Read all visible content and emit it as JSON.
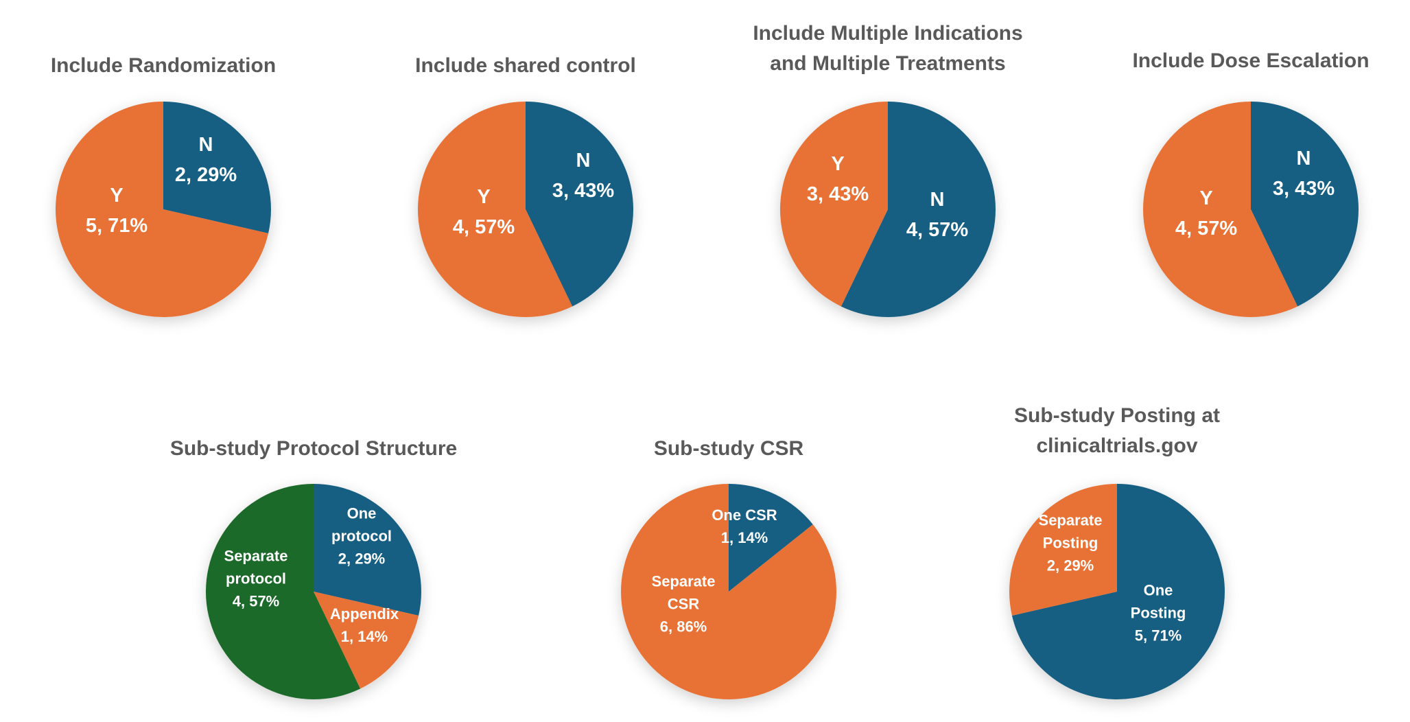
{
  "colors": {
    "blue": "#175E82",
    "orange": "#E87234",
    "green": "#1D6B2A",
    "title": "#595959"
  },
  "chart_data": [
    {
      "type": "pie",
      "title": [
        "Include Randomization"
      ],
      "slices": [
        {
          "name": "N",
          "count": 2,
          "pct": "29%",
          "label": [
            "N",
            "2, 29%"
          ],
          "color": "blue"
        },
        {
          "name": "Y",
          "count": 5,
          "pct": "71%",
          "label": [
            "Y",
            "5, 71%"
          ],
          "color": "orange"
        }
      ]
    },
    {
      "type": "pie",
      "title": [
        "Include shared control"
      ],
      "slices": [
        {
          "name": "N",
          "count": 3,
          "pct": "43%",
          "label": [
            "N",
            "3, 43%"
          ],
          "color": "blue"
        },
        {
          "name": "Y",
          "count": 4,
          "pct": "57%",
          "label": [
            "Y",
            "4, 57%"
          ],
          "color": "orange"
        }
      ]
    },
    {
      "type": "pie",
      "title": [
        "Include Multiple Indications",
        "and Multiple Treatments"
      ],
      "slices": [
        {
          "name": "N",
          "count": 4,
          "pct": "57%",
          "label": [
            "N",
            "4, 57%"
          ],
          "color": "blue"
        },
        {
          "name": "Y",
          "count": 3,
          "pct": "43%",
          "label": [
            "Y",
            "3, 43%"
          ],
          "color": "orange"
        }
      ]
    },
    {
      "type": "pie",
      "title": [
        "Include Dose Escalation"
      ],
      "slices": [
        {
          "name": "N",
          "count": 3,
          "pct": "43%",
          "label": [
            "N",
            "3, 43%"
          ],
          "color": "blue"
        },
        {
          "name": "Y",
          "count": 4,
          "pct": "57%",
          "label": [
            "Y",
            "4, 57%"
          ],
          "color": "orange"
        }
      ]
    },
    {
      "type": "pie",
      "title": [
        "Sub-study Protocol Structure"
      ],
      "slices": [
        {
          "name": "One protocol",
          "count": 2,
          "pct": "29%",
          "label": [
            "One",
            "protocol",
            "2, 29%"
          ],
          "color": "blue"
        },
        {
          "name": "Appendix",
          "count": 1,
          "pct": "14%",
          "label": [
            "Appendix",
            "1, 14%"
          ],
          "color": "orange"
        },
        {
          "name": "Separate protocol",
          "count": 4,
          "pct": "57%",
          "label": [
            "Separate",
            "protocol",
            "4, 57%"
          ],
          "color": "green"
        }
      ]
    },
    {
      "type": "pie",
      "title": [
        "Sub-study CSR"
      ],
      "slices": [
        {
          "name": "One CSR",
          "count": 1,
          "pct": "14%",
          "label": [
            "One CSR",
            "1, 14%"
          ],
          "color": "blue"
        },
        {
          "name": "Separate CSR",
          "count": 6,
          "pct": "86%",
          "label": [
            "Separate",
            "CSR",
            "6, 86%"
          ],
          "color": "orange"
        }
      ]
    },
    {
      "type": "pie",
      "title": [
        "Sub-study Posting at",
        "clinicaltrials.gov"
      ],
      "slices": [
        {
          "name": "One Posting",
          "count": 5,
          "pct": "71%",
          "label": [
            "One",
            "Posting",
            "5, 71%"
          ],
          "color": "blue"
        },
        {
          "name": "Separate Posting",
          "count": 2,
          "pct": "29%",
          "label": [
            "Separate",
            "Posting",
            "2, 29%"
          ],
          "color": "orange"
        }
      ]
    }
  ]
}
